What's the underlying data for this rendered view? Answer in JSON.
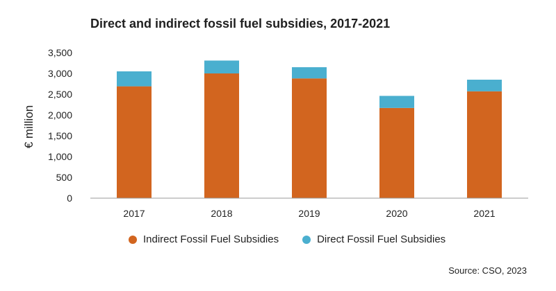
{
  "chart_data": {
    "type": "bar",
    "stacked": true,
    "title": "Direct and indirect fossil fuel subsidies, 2017-2021",
    "xlabel": "",
    "ylabel": "€ million",
    "ylim": [
      0,
      3500
    ],
    "yticks": [
      0,
      500,
      1000,
      1500,
      2000,
      2500,
      3000,
      3500
    ],
    "ytick_labels": [
      "0",
      "500",
      "1,000",
      "1,500",
      "2,000",
      "2,500",
      "3,000",
      "3,500"
    ],
    "categories": [
      "2017",
      "2018",
      "2019",
      "2020",
      "2021"
    ],
    "series": [
      {
        "name": "Indirect Fossil Fuel Subsidies",
        "color": "#D2651F",
        "values": [
          2690,
          3000,
          2880,
          2170,
          2570
        ]
      },
      {
        "name": "Direct Fossil Fuel Subsidies",
        "color": "#4AAFCF",
        "values": [
          360,
          310,
          270,
          290,
          280
        ]
      }
    ],
    "legend_position": "bottom",
    "grid": false
  },
  "source": "Source: CSO, 2023",
  "colors": {
    "axis": "#999999",
    "text": "#222222"
  }
}
